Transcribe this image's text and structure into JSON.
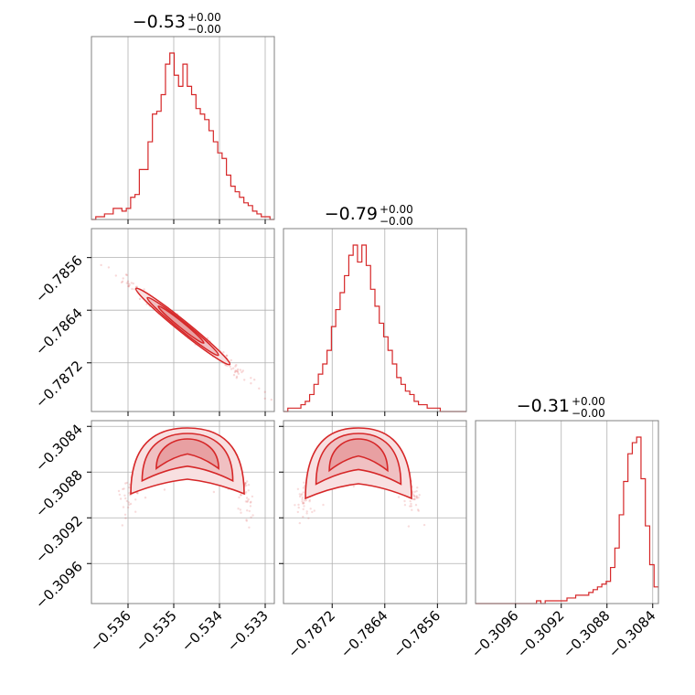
{
  "chart_data": {
    "type": "corner",
    "color": "#d62728",
    "fill_colors": [
      "#e8a0a2",
      "#f0c0c2",
      "#f8e0e1"
    ],
    "grid": true,
    "parameters": [
      {
        "title_main": "−0.53",
        "title_sup": "+0.00",
        "title_sub": "−0.00",
        "range": [
          -0.5368,
          -0.5328
        ],
        "ticks": [
          -0.536,
          -0.535,
          -0.534,
          -0.533
        ],
        "tick_labels": [
          "−0.536",
          "−0.535",
          "−0.534",
          "−0.533"
        ]
      },
      {
        "title_main": "−0.79",
        "title_sup": "+0.00",
        "title_sub": "−0.00",
        "range": [
          -0.78794,
          -0.78516
        ],
        "ticks": [
          -0.7872,
          -0.7864,
          -0.7856
        ],
        "tick_labels": [
          "−0.7872",
          "−0.7864",
          "−0.7856"
        ]
      },
      {
        "title_main": "−0.31",
        "title_sup": "+0.00",
        "title_sub": "−0.00",
        "range": [
          -0.30995,
          -0.30835
        ],
        "ticks": [
          -0.3096,
          -0.3092,
          -0.3088,
          -0.3084
        ],
        "tick_labels": [
          "−0.3096",
          "−0.3092",
          "−0.3088",
          "−0.3084"
        ]
      }
    ],
    "histograms": [
      {
        "param": 0,
        "counts": [
          0,
          1,
          1,
          2,
          2,
          4,
          4,
          3,
          4,
          8,
          9,
          18,
          18,
          28,
          38,
          39,
          45,
          56,
          60,
          52,
          48,
          56,
          48,
          45,
          40,
          38,
          36,
          32,
          28,
          24,
          22,
          16,
          12,
          10,
          8,
          6,
          5,
          3,
          2,
          1,
          1,
          0
        ]
      },
      {
        "param": 1,
        "counts": [
          0,
          1,
          1,
          1,
          2,
          3,
          5,
          8,
          11,
          14,
          18,
          25,
          30,
          35,
          40,
          46,
          49,
          44,
          49,
          43,
          36,
          31,
          26,
          22,
          18,
          14,
          10,
          8,
          6,
          5,
          3,
          2,
          2,
          1,
          1,
          1,
          0,
          0,
          0,
          0,
          0,
          0
        ]
      },
      {
        "param": 2,
        "counts": [
          0,
          0,
          0,
          0,
          0,
          0,
          0,
          0,
          0,
          0,
          0,
          0,
          0,
          0,
          1,
          0,
          1,
          1,
          1,
          1,
          1,
          2,
          2,
          3,
          3,
          3,
          4,
          5,
          6,
          7,
          8,
          13,
          20,
          32,
          44,
          54,
          58,
          60,
          45,
          28,
          14,
          6
        ]
      }
    ],
    "pairs": [
      {
        "x": 0,
        "y": 1,
        "correlation": -0.98
      },
      {
        "x": 0,
        "y": 2,
        "shape": "arch"
      },
      {
        "x": 1,
        "y": 2,
        "shape": "arch"
      }
    ]
  }
}
